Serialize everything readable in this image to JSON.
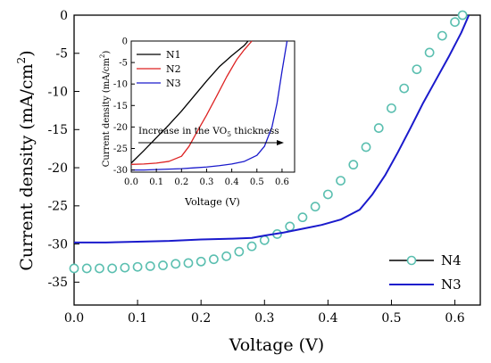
{
  "chart_data": [
    {
      "type": "line",
      "xlabel": "Voltage (V)",
      "ylabel_main": "Current density (mA/cm",
      "ylabel_sup": "2",
      "ylabel_end": ")",
      "xlim": [
        0.0,
        0.64
      ],
      "ylim": [
        -38,
        0
      ],
      "xticks": [
        "0.0",
        "0.1",
        "0.2",
        "0.3",
        "0.4",
        "0.5",
        "0.6"
      ],
      "yticks": [
        "0",
        "-5",
        "-10",
        "-15",
        "-20",
        "-25",
        "-30",
        "-35"
      ],
      "legend": {
        "placement": "bottom-right",
        "entries": [
          "N4",
          "N3"
        ]
      },
      "series": [
        {
          "name": "N4",
          "color": "#000000",
          "marker": "open-circle",
          "marker_color": "#5bbfb0",
          "x": [
            0.0,
            0.02,
            0.04,
            0.06,
            0.08,
            0.1,
            0.12,
            0.14,
            0.16,
            0.18,
            0.2,
            0.22,
            0.24,
            0.26,
            0.28,
            0.3,
            0.32,
            0.34,
            0.36,
            0.38,
            0.4,
            0.42,
            0.44,
            0.46,
            0.48,
            0.5,
            0.52,
            0.54,
            0.56,
            0.58,
            0.6,
            0.612
          ],
          "y": [
            -33.2,
            -33.2,
            -33.2,
            -33.2,
            -33.1,
            -33.0,
            -32.9,
            -32.8,
            -32.6,
            -32.5,
            -32.3,
            -32.0,
            -31.6,
            -31.0,
            -30.3,
            -29.5,
            -28.7,
            -27.7,
            -26.5,
            -25.1,
            -23.5,
            -21.7,
            -19.6,
            -17.3,
            -14.8,
            -12.2,
            -9.6,
            -7.1,
            -4.9,
            -2.7,
            -0.9,
            0.0
          ]
        },
        {
          "name": "N3",
          "color": "#1a1acc",
          "marker": "none",
          "x": [
            0.0,
            0.05,
            0.1,
            0.15,
            0.2,
            0.25,
            0.28,
            0.3,
            0.33,
            0.36,
            0.39,
            0.42,
            0.45,
            0.47,
            0.49,
            0.51,
            0.53,
            0.55,
            0.57,
            0.59,
            0.61,
            0.622
          ],
          "y": [
            -29.8,
            -29.8,
            -29.7,
            -29.6,
            -29.4,
            -29.3,
            -29.2,
            -28.9,
            -28.5,
            -28.0,
            -27.5,
            -26.8,
            -25.5,
            -23.5,
            -21.0,
            -18.0,
            -14.8,
            -11.5,
            -8.5,
            -5.5,
            -2.3,
            0.0
          ]
        }
      ]
    },
    {
      "type": "line",
      "xlabel": "Voltage (V)",
      "ylabel": "Current density (mA/cm",
      "ylabel_sup": "2",
      "ylabel_end": ")",
      "xlim": [
        0.0,
        0.65
      ],
      "ylim": [
        -30.5,
        0
      ],
      "xticks": [
        "0.0",
        "0.1",
        "0.2",
        "0.3",
        "0.4",
        "0.5",
        "0.6"
      ],
      "yticks": [
        "0",
        "-5",
        "-10",
        "-15",
        "-20",
        "-25",
        "-30"
      ],
      "legend": {
        "placement": "top-left",
        "entries": [
          "N1",
          "N2",
          "N3"
        ]
      },
      "annotation": {
        "pre": "Increase in the VO",
        "sub": "5",
        "post": " thickness"
      },
      "series": [
        {
          "name": "N1",
          "color": "#000000",
          "x": [
            0.0,
            0.05,
            0.1,
            0.15,
            0.2,
            0.25,
            0.3,
            0.35,
            0.4,
            0.45,
            0.465
          ],
          "y": [
            -28.4,
            -25.5,
            -22.5,
            -19.5,
            -16.3,
            -12.8,
            -9.3,
            -6.0,
            -3.4,
            -1.0,
            0.0
          ]
        },
        {
          "name": "N2",
          "color": "#dd2222",
          "x": [
            0.0,
            0.05,
            0.1,
            0.15,
            0.2,
            0.23,
            0.26,
            0.3,
            0.34,
            0.38,
            0.42,
            0.45,
            0.48
          ],
          "y": [
            -28.7,
            -28.6,
            -28.4,
            -28.0,
            -26.8,
            -24.5,
            -21.3,
            -17.2,
            -12.8,
            -8.3,
            -4.3,
            -2.0,
            0.0
          ]
        },
        {
          "name": "N3",
          "color": "#1a1acc",
          "x": [
            0.0,
            0.05,
            0.1,
            0.15,
            0.2,
            0.25,
            0.3,
            0.35,
            0.4,
            0.45,
            0.5,
            0.53,
            0.56,
            0.58,
            0.6,
            0.62
          ],
          "y": [
            -30.0,
            -30.0,
            -29.9,
            -29.8,
            -29.7,
            -29.5,
            -29.3,
            -29.0,
            -28.6,
            -28.0,
            -26.6,
            -24.5,
            -20.0,
            -14.5,
            -7.0,
            0.0
          ]
        }
      ]
    }
  ]
}
